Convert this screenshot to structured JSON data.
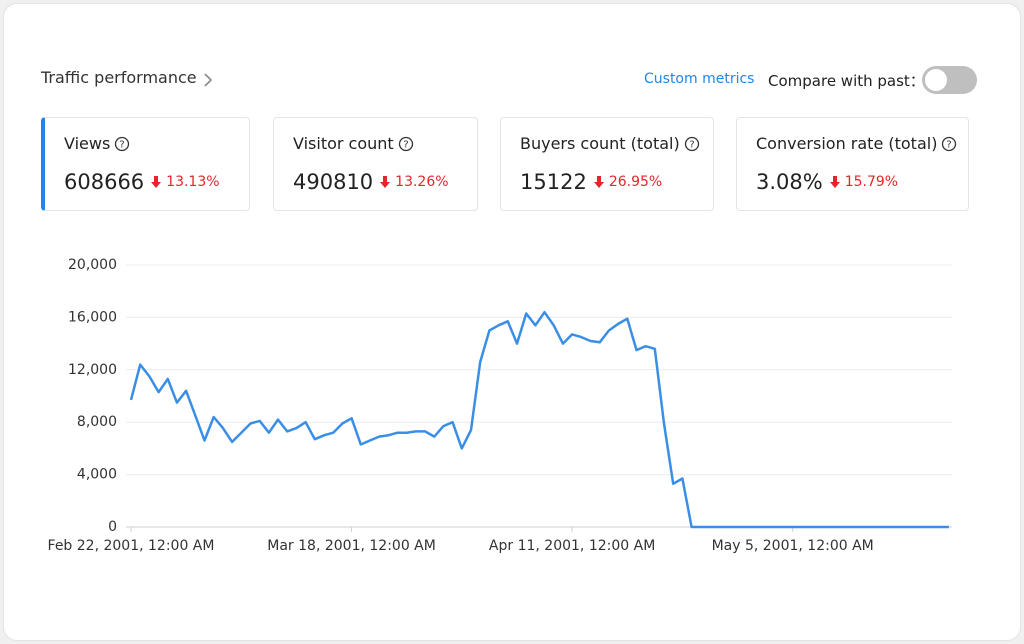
{
  "header": {
    "title": "Traffic performance",
    "custom_metrics": "Custom metrics",
    "compare_label": "Compare with past："
  },
  "metrics": [
    {
      "label": "Views",
      "value": "608666",
      "change": "13.13%"
    },
    {
      "label": "Visitor count",
      "value": "490810",
      "change": "13.26%"
    },
    {
      "label": "Buyers count (total)",
      "value": "15122",
      "change": "26.95%"
    },
    {
      "label": "Conversion rate (total)",
      "value": "3.08%",
      "change": "15.79%"
    }
  ],
  "chart_data": {
    "type": "line",
    "color": "#3a8ee6",
    "grid": true,
    "categories": [
      "Feb 22, 2001, 12:00 AM",
      null,
      null,
      null,
      null,
      null,
      null,
      null,
      null,
      null,
      null,
      null,
      null,
      null,
      null,
      null,
      null,
      null,
      null,
      null,
      null,
      null,
      null,
      null,
      "Mar 18, 2001, 12:00 AM",
      null,
      null,
      null,
      null,
      null,
      null,
      null,
      null,
      null,
      null,
      null,
      null,
      null,
      null,
      null,
      null,
      null,
      null,
      null,
      null,
      null,
      null,
      null,
      "Apr 11, 2001, 12:00 AM",
      null,
      null,
      null,
      null,
      null,
      null,
      null,
      null,
      null,
      null,
      null,
      null,
      null,
      null,
      null,
      null,
      null,
      null,
      null,
      null,
      null,
      null,
      null,
      "May 5, 2001, 12:00 AM",
      null,
      null,
      null,
      null,
      null,
      null,
      null,
      null,
      null,
      null,
      null,
      null,
      null,
      null,
      null,
      null,
      null
    ],
    "values": [
      9700,
      12400,
      11500,
      10300,
      11300,
      9500,
      10400,
      8500,
      6600,
      8400,
      7550,
      6500,
      7200,
      7900,
      8100,
      7200,
      8200,
      7300,
      7550,
      8000,
      6700,
      7000,
      7200,
      7900,
      8300,
      6300,
      6600,
      6900,
      7000,
      7200,
      7200,
      7300,
      7300,
      6900,
      7700,
      8000,
      6000,
      7400,
      12600,
      15000,
      15400,
      15700,
      14000,
      16300,
      15400,
      16400,
      15400,
      14000,
      14700,
      14500,
      14200,
      14100,
      15000,
      15500,
      15900,
      13500,
      13800,
      13600,
      7900,
      3300,
      3700,
      0,
      0,
      0,
      0,
      0,
      0,
      0,
      0,
      0,
      0,
      0,
      0,
      0,
      0,
      0,
      0,
      0,
      0,
      0,
      0,
      0,
      0,
      0,
      0,
      0,
      0,
      0,
      0,
      0
    ],
    "ylim": [
      0,
      20000
    ],
    "yticks": [
      0,
      {
        "value": 4000,
        "label": "4,000"
      },
      {
        "value": 8000,
        "label": "8,000"
      },
      {
        "value": 12000,
        "label": "12,000"
      },
      {
        "value": 16000,
        "label": "16,000"
      },
      {
        "value": 20000,
        "label": "20,000"
      }
    ]
  }
}
